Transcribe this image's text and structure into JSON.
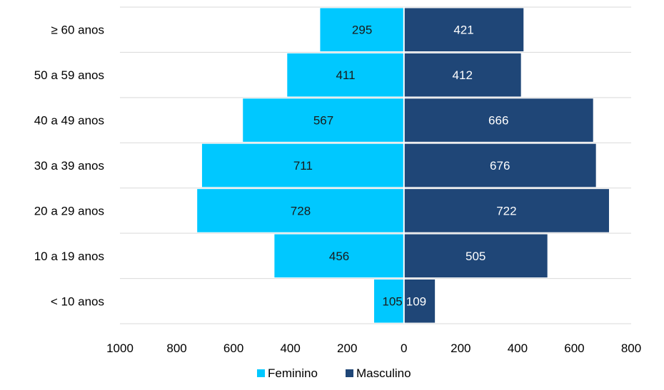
{
  "chart_data": {
    "type": "bar",
    "orientation": "horizontal",
    "layout": "population-pyramid",
    "categories": [
      "≥ 60 anos",
      "50 a 59 anos",
      "40 a 49 anos",
      "30 a 39 anos",
      "20 a 29 anos",
      "10 a 19 anos",
      "< 10 anos"
    ],
    "series": [
      {
        "name": "Feminino",
        "color": "#00C8FF",
        "label_color": "#1a1a1a",
        "values": [
          295,
          411,
          567,
          711,
          728,
          456,
          105
        ]
      },
      {
        "name": "Masculino",
        "color": "#1F4677",
        "label_color": "#ffffff",
        "values": [
          421,
          412,
          666,
          676,
          722,
          505,
          109
        ]
      }
    ],
    "xlim": [
      -1000,
      800
    ],
    "x_ticks": [
      -1000,
      -800,
      -600,
      -400,
      -200,
      0,
      200,
      400,
      600,
      800
    ],
    "x_tick_labels": [
      "1000",
      "800",
      "600",
      "400",
      "200",
      "0",
      "200",
      "400",
      "600",
      "800"
    ],
    "grid": "horizontal",
    "legend_position": "bottom",
    "data_labels": true,
    "title": "",
    "xlabel": "",
    "ylabel": ""
  }
}
